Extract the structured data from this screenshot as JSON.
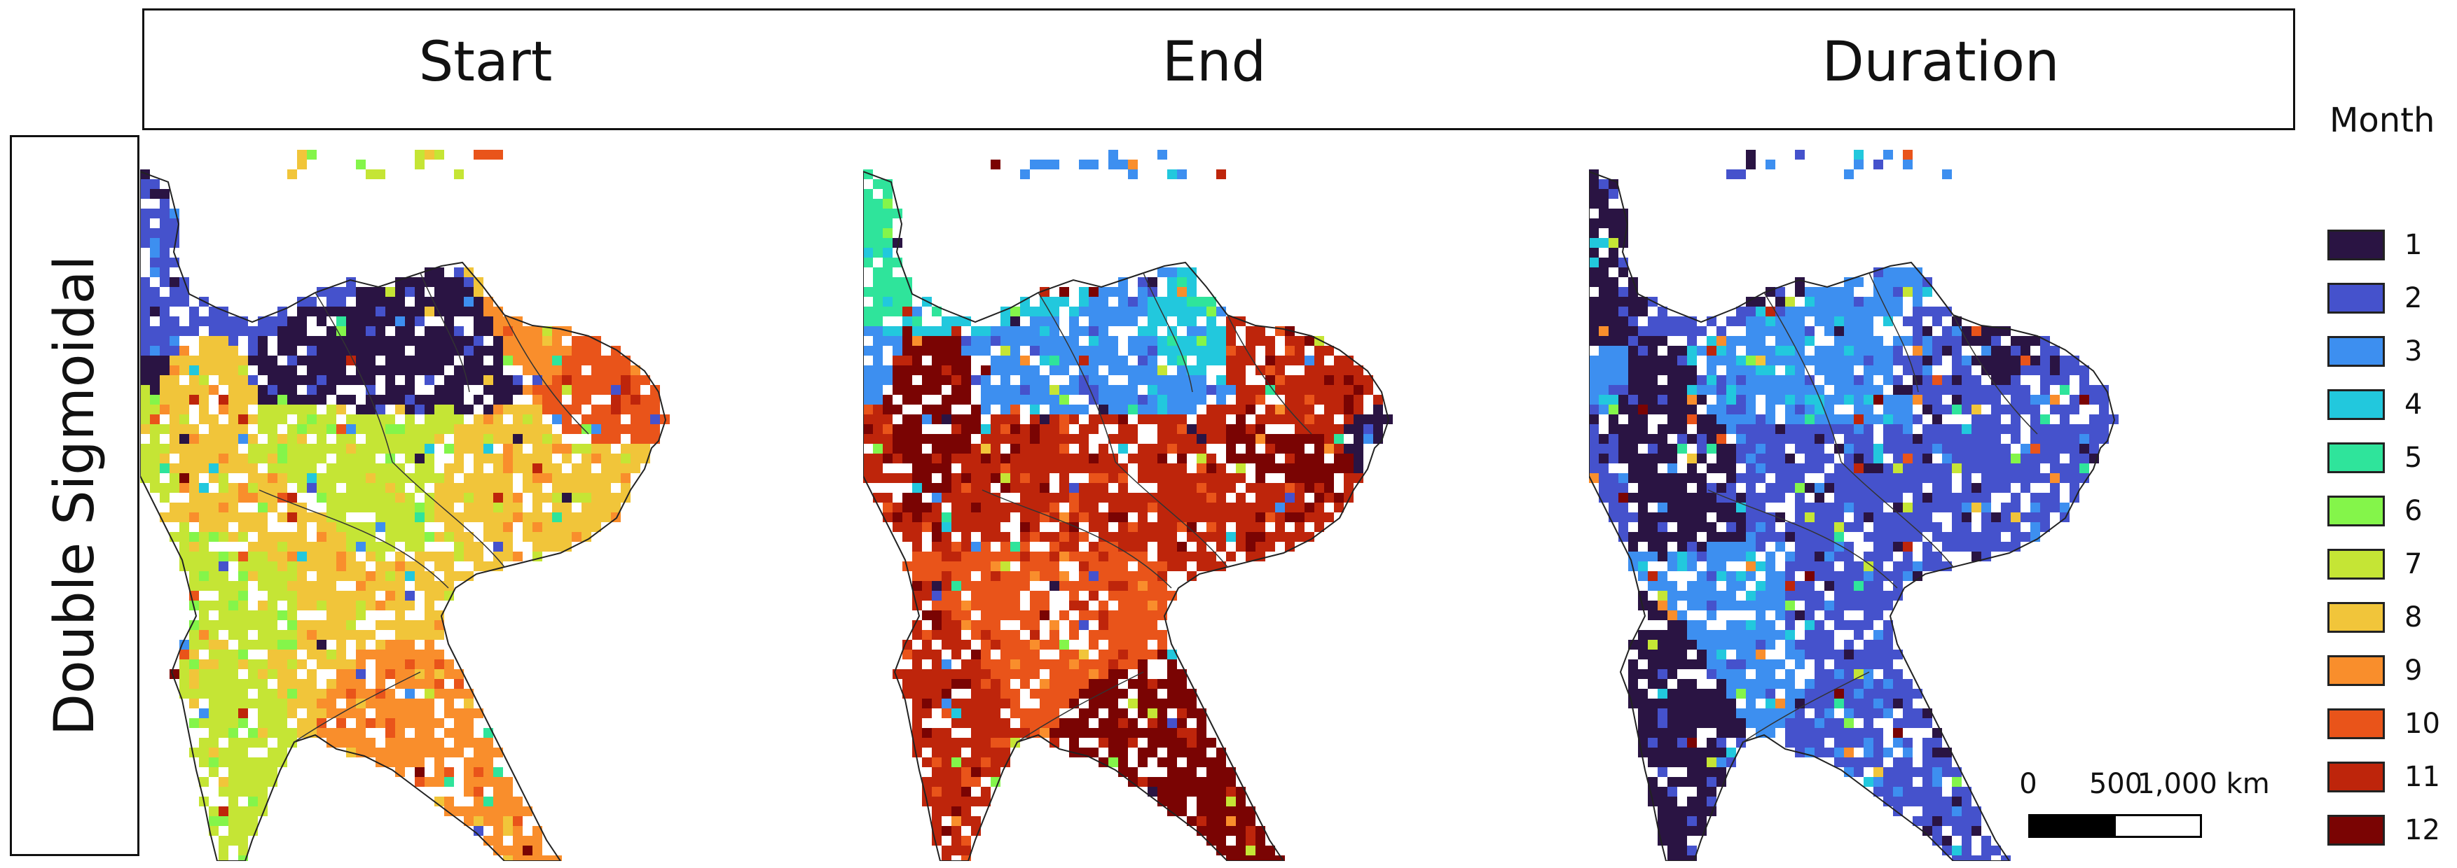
{
  "columns": {
    "start": "Start",
    "end": "End",
    "duration": "Duration"
  },
  "row_label": "Double Sigmoidal",
  "legend": {
    "title": "Month",
    "items": [
      {
        "label": "1",
        "color": "#2a1443"
      },
      {
        "label": "2",
        "color": "#4552cc"
      },
      {
        "label": "3",
        "color": "#3d8ff0"
      },
      {
        "label": "4",
        "color": "#22c8dd"
      },
      {
        "label": "5",
        "color": "#2fe49b"
      },
      {
        "label": "6",
        "color": "#84f54a"
      },
      {
        "label": "7",
        "color": "#c5e535"
      },
      {
        "label": "8",
        "color": "#f1c53a"
      },
      {
        "label": "9",
        "color": "#f98e2c"
      },
      {
        "label": "10",
        "color": "#e9541a"
      },
      {
        "label": "11",
        "color": "#be250b"
      },
      {
        "label": "12",
        "color": "#7a0403"
      }
    ]
  },
  "scalebar": {
    "labels": [
      "0",
      "500",
      "1,000 km"
    ]
  }
}
